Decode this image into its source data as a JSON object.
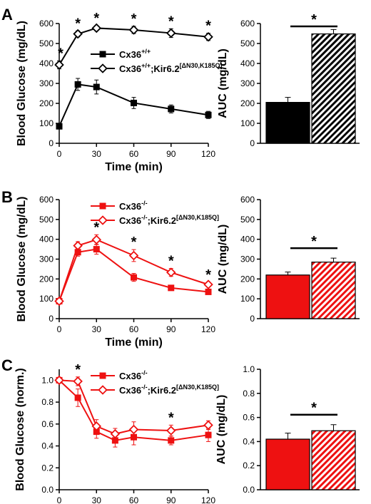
{
  "colors": {
    "black": "#000000",
    "red": "#ee1111",
    "white": "#ffffff"
  },
  "chart_data": [
    {
      "panel": "A",
      "type": "line",
      "xlabel": "Time (min)",
      "ylabel": "Blood Glucose (mg/dL)",
      "xlim": [
        0,
        120
      ],
      "ylim": [
        0,
        600
      ],
      "xticks": [
        0,
        30,
        60,
        90,
        120
      ],
      "yticks": [
        0,
        100,
        200,
        300,
        400,
        500,
        600
      ],
      "color": "#000000",
      "legend": "top",
      "series": [
        {
          "name": "Cx36",
          "name_sup": "+/+",
          "marker": "filled-square",
          "x": [
            0,
            15,
            30,
            60,
            90,
            120
          ],
          "values": [
            85,
            295,
            282,
            202,
            172,
            142
          ],
          "err": [
            5,
            30,
            35,
            28,
            20,
            18
          ]
        },
        {
          "name": "Cx36",
          "name_sup": "+/+",
          "name_suffix": ";Kir6.2",
          "name_sup2": "[ΔN30,K185Q]",
          "marker": "open-diamond",
          "x": [
            0,
            15,
            30,
            60,
            90,
            120
          ],
          "values": [
            393,
            548,
            577,
            568,
            552,
            533
          ],
          "err": [
            20,
            15,
            12,
            18,
            22,
            18
          ]
        }
      ],
      "significance": [
        "*",
        "*",
        "*",
        "*",
        "*",
        "*"
      ],
      "significance_x": [
        0,
        15,
        30,
        60,
        90,
        120
      ]
    },
    {
      "panel": "A",
      "type": "bar",
      "ylabel": "AUC (mg/dL)",
      "ylim": [
        0,
        600
      ],
      "yticks": [
        0,
        100,
        200,
        300,
        400,
        500,
        600
      ],
      "values": [
        205,
        548
      ],
      "err": [
        25,
        22
      ],
      "fills": [
        "solid",
        "hatched"
      ],
      "color": "#000000",
      "significance": "*"
    },
    {
      "panel": "B",
      "type": "line",
      "xlabel": "Time (min)",
      "ylabel": "Blood Glucose (mg/dL)",
      "xlim": [
        0,
        120
      ],
      "ylim": [
        0,
        600
      ],
      "xticks": [
        0,
        30,
        60,
        90,
        120
      ],
      "yticks": [
        0,
        100,
        200,
        300,
        400,
        500,
        600
      ],
      "color": "#ee1111",
      "legend": "top",
      "series": [
        {
          "name": "Cx36",
          "name_sup": "-/-",
          "marker": "filled-square",
          "x": [
            0,
            15,
            30,
            60,
            90,
            120
          ],
          "values": [
            88,
            335,
            350,
            208,
            155,
            135
          ],
          "err": [
            5,
            20,
            25,
            20,
            12,
            10
          ]
        },
        {
          "name": "Cx36",
          "name_sup": "-/-",
          "name_suffix": ";Kir6.2",
          "name_sup2": "[ΔN30,K185Q]",
          "marker": "open-diamond",
          "x": [
            0,
            15,
            30,
            60,
            90,
            120
          ],
          "values": [
            88,
            368,
            398,
            318,
            233,
            172
          ],
          "err": [
            5,
            20,
            25,
            30,
            20,
            12
          ]
        }
      ],
      "significance": [
        "*",
        "*",
        "*",
        "*"
      ],
      "significance_x": [
        30,
        60,
        90,
        120
      ]
    },
    {
      "panel": "B",
      "type": "bar",
      "ylabel": "AUC (mg/dL)",
      "ylim": [
        0,
        600
      ],
      "yticks": [
        0,
        100,
        200,
        300,
        400,
        500,
        600
      ],
      "values": [
        220,
        285
      ],
      "err": [
        15,
        20
      ],
      "fills": [
        "solid",
        "hatched"
      ],
      "color": "#ee1111",
      "significance": "*"
    },
    {
      "panel": "C",
      "type": "line",
      "ylabel": "Blood Glucose (norm.)",
      "xlim": [
        0,
        120
      ],
      "ylim": [
        0,
        1.1
      ],
      "xticks": [
        0,
        30,
        60,
        90,
        120
      ],
      "yticks": [
        0.0,
        0.2,
        0.4,
        0.6,
        0.8,
        1.0
      ],
      "color": "#ee1111",
      "legend": "top",
      "series": [
        {
          "name": "Cx36",
          "name_sup": "-/-",
          "marker": "filled-square",
          "x": [
            0,
            15,
            30,
            45,
            60,
            90,
            120
          ],
          "values": [
            1.0,
            0.84,
            0.53,
            0.45,
            0.48,
            0.45,
            0.5
          ],
          "err": [
            0.01,
            0.08,
            0.06,
            0.06,
            0.07,
            0.04,
            0.06
          ]
        },
        {
          "name": "Cx36",
          "name_sup": "-/-",
          "name_suffix": ";Kir6.2",
          "name_sup2": "[ΔN30,K185Q]",
          "marker": "open-diamond",
          "x": [
            0,
            15,
            30,
            45,
            60,
            90,
            120
          ],
          "values": [
            1.0,
            0.99,
            0.58,
            0.51,
            0.55,
            0.54,
            0.59
          ],
          "err": [
            0.01,
            0.04,
            0.06,
            0.05,
            0.07,
            0.05,
            0.04
          ]
        }
      ],
      "significance": [
        "*",
        "*"
      ],
      "significance_x": [
        15,
        90
      ]
    },
    {
      "panel": "C",
      "type": "bar",
      "ylabel": "AUC (mg/dL)",
      "ylim": [
        0,
        1.0
      ],
      "yticks": [
        0.0,
        0.2,
        0.4,
        0.6,
        0.8,
        1.0
      ],
      "values": [
        0.42,
        0.49
      ],
      "err": [
        0.05,
        0.05
      ],
      "fills": [
        "solid",
        "hatched"
      ],
      "color": "#ee1111",
      "significance": "*"
    }
  ]
}
